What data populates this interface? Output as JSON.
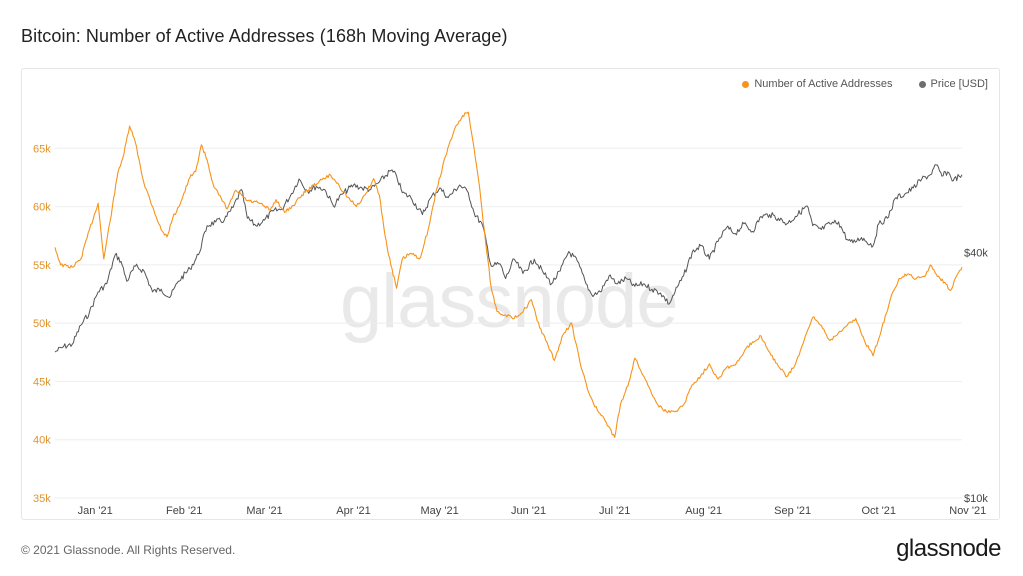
{
  "title": "Bitcoin: Number of Active Addresses (168h Moving Average)",
  "footer": {
    "copyright": "© 2021 Glassnode. All Rights Reserved.",
    "logo": "glassnode"
  },
  "watermark": "glassnode",
  "colors": {
    "addresses": "#f7931a",
    "price": "#555555",
    "grid": "#eeeeee",
    "left_tick": "#e0932b"
  },
  "chart_data": {
    "type": "line",
    "title": "Bitcoin: Number of Active Addresses (168h Moving Average)",
    "x_range": [
      "2020-12-18",
      "2021-10-30"
    ],
    "x_ticks": [
      {
        "label": "Jan '21",
        "date": "2021-01-01"
      },
      {
        "label": "Feb '21",
        "date": "2021-02-01"
      },
      {
        "label": "Mar '21",
        "date": "2021-03-01"
      },
      {
        "label": "Apr '21",
        "date": "2021-04-01"
      },
      {
        "label": "May '21",
        "date": "2021-05-01"
      },
      {
        "label": "Jun '21",
        "date": "2021-06-01"
      },
      {
        "label": "Jul '21",
        "date": "2021-07-01"
      },
      {
        "label": "Aug '21",
        "date": "2021-08-01"
      },
      {
        "label": "Sep '21",
        "date": "2021-09-01"
      },
      {
        "label": "Oct '21",
        "date": "2021-10-01"
      },
      {
        "label": "Nov '21",
        "date": "2021-11-01"
      }
    ],
    "y_left": {
      "range": [
        35000,
        70000
      ],
      "ticks": [
        35000,
        40000,
        45000,
        50000,
        55000,
        60000,
        65000
      ],
      "tick_labels": [
        "35k",
        "40k",
        "45k",
        "50k",
        "55k",
        "60k",
        "65k"
      ]
    },
    "y_right": {
      "scale": "log",
      "range": [
        10000,
        100000
      ],
      "ticks": [
        10000,
        40000
      ],
      "tick_labels": [
        "$10k",
        "$40k"
      ]
    },
    "legend": {
      "position": "top-right"
    },
    "series": [
      {
        "name": "Number of Active Addresses",
        "axis": "left",
        "color": "#f7931a",
        "points": [
          [
            "2020-12-18",
            56500
          ],
          [
            "2020-12-20",
            55000
          ],
          [
            "2020-12-24",
            54800
          ],
          [
            "2020-12-27",
            55500
          ],
          [
            "2020-12-30",
            58000
          ],
          [
            "2021-01-02",
            60300
          ],
          [
            "2021-01-04",
            55500
          ],
          [
            "2021-01-07",
            60000
          ],
          [
            "2021-01-09",
            63000
          ],
          [
            "2021-01-11",
            64500
          ],
          [
            "2021-01-13",
            66900
          ],
          [
            "2021-01-15",
            65500
          ],
          [
            "2021-01-18",
            62000
          ],
          [
            "2021-01-21",
            60000
          ],
          [
            "2021-01-24",
            58000
          ],
          [
            "2021-01-26",
            57400
          ],
          [
            "2021-01-28",
            59000
          ],
          [
            "2021-01-31",
            60500
          ],
          [
            "2021-02-03",
            62500
          ],
          [
            "2021-02-05",
            63000
          ],
          [
            "2021-02-07",
            65300
          ],
          [
            "2021-02-09",
            64000
          ],
          [
            "2021-02-11",
            62000
          ],
          [
            "2021-02-13",
            61000
          ],
          [
            "2021-02-16",
            59800
          ],
          [
            "2021-02-19",
            61400
          ],
          [
            "2021-02-23",
            60500
          ],
          [
            "2021-02-27",
            60300
          ],
          [
            "2021-03-03",
            59700
          ],
          [
            "2021-03-05",
            60600
          ],
          [
            "2021-03-08",
            59500
          ],
          [
            "2021-03-11",
            60100
          ],
          [
            "2021-03-14",
            61000
          ],
          [
            "2021-03-18",
            61800
          ],
          [
            "2021-03-21",
            62300
          ],
          [
            "2021-03-24",
            62700
          ],
          [
            "2021-03-27",
            61800
          ],
          [
            "2021-03-30",
            60800
          ],
          [
            "2021-04-02",
            60000
          ],
          [
            "2021-04-05",
            61000
          ],
          [
            "2021-04-08",
            62400
          ],
          [
            "2021-04-10",
            61000
          ],
          [
            "2021-04-12",
            57500
          ],
          [
            "2021-04-14",
            55000
          ],
          [
            "2021-04-16",
            53000
          ],
          [
            "2021-04-18",
            55500
          ],
          [
            "2021-04-21",
            56000
          ],
          [
            "2021-04-24",
            55500
          ],
          [
            "2021-04-27",
            58000
          ],
          [
            "2021-04-30",
            61500
          ],
          [
            "2021-05-03",
            64300
          ],
          [
            "2021-05-06",
            66500
          ],
          [
            "2021-05-09",
            67800
          ],
          [
            "2021-05-11",
            68100
          ],
          [
            "2021-05-13",
            65000
          ],
          [
            "2021-05-15",
            61500
          ],
          [
            "2021-05-17",
            57000
          ],
          [
            "2021-05-19",
            53000
          ],
          [
            "2021-05-21",
            51000
          ],
          [
            "2021-05-24",
            50700
          ],
          [
            "2021-05-27",
            50400
          ],
          [
            "2021-05-31",
            51300
          ],
          [
            "2021-06-02",
            52000
          ],
          [
            "2021-06-04",
            50200
          ],
          [
            "2021-06-07",
            48500
          ],
          [
            "2021-06-10",
            46800
          ],
          [
            "2021-06-13",
            49000
          ],
          [
            "2021-06-16",
            50000
          ],
          [
            "2021-06-19",
            46500
          ],
          [
            "2021-06-22",
            44000
          ],
          [
            "2021-06-25",
            42500
          ],
          [
            "2021-06-28",
            41500
          ],
          [
            "2021-07-01",
            40200
          ],
          [
            "2021-07-03",
            43000
          ],
          [
            "2021-07-06",
            45000
          ],
          [
            "2021-07-08",
            47000
          ],
          [
            "2021-07-10",
            46000
          ],
          [
            "2021-07-13",
            44500
          ],
          [
            "2021-07-16",
            43000
          ],
          [
            "2021-07-19",
            42400
          ],
          [
            "2021-07-22",
            42400
          ],
          [
            "2021-07-25",
            43000
          ],
          [
            "2021-07-28",
            44700
          ],
          [
            "2021-07-31",
            45500
          ],
          [
            "2021-08-03",
            46500
          ],
          [
            "2021-08-06",
            45200
          ],
          [
            "2021-08-09",
            46200
          ],
          [
            "2021-08-12",
            46400
          ],
          [
            "2021-08-15",
            47500
          ],
          [
            "2021-08-18",
            48400
          ],
          [
            "2021-08-21",
            48900
          ],
          [
            "2021-08-24",
            47500
          ],
          [
            "2021-08-27",
            46300
          ],
          [
            "2021-08-30",
            45400
          ],
          [
            "2021-09-02",
            46500
          ],
          [
            "2021-09-05",
            48500
          ],
          [
            "2021-09-08",
            50500
          ],
          [
            "2021-09-11",
            49800
          ],
          [
            "2021-09-14",
            48500
          ],
          [
            "2021-09-17",
            49200
          ],
          [
            "2021-09-20",
            49800
          ],
          [
            "2021-09-23",
            50400
          ],
          [
            "2021-09-26",
            48500
          ],
          [
            "2021-09-29",
            47200
          ],
          [
            "2021-10-02",
            49500
          ],
          [
            "2021-10-05",
            52000
          ],
          [
            "2021-10-08",
            53800
          ],
          [
            "2021-10-11",
            54200
          ],
          [
            "2021-10-14",
            53800
          ],
          [
            "2021-10-17",
            54000
          ],
          [
            "2021-10-19",
            55000
          ],
          [
            "2021-10-21",
            54200
          ],
          [
            "2021-10-24",
            53500
          ],
          [
            "2021-10-26",
            52800
          ],
          [
            "2021-10-28",
            54000
          ],
          [
            "2021-10-30",
            54800
          ]
        ]
      },
      {
        "name": "Price [USD]",
        "axis": "right",
        "color": "#555555",
        "points": [
          [
            "2020-12-18",
            22800
          ],
          [
            "2020-12-21",
            23500
          ],
          [
            "2020-12-24",
            23800
          ],
          [
            "2020-12-27",
            26500
          ],
          [
            "2020-12-30",
            28500
          ],
          [
            "2021-01-02",
            32000
          ],
          [
            "2021-01-05",
            33500
          ],
          [
            "2021-01-08",
            39500
          ],
          [
            "2021-01-10",
            38000
          ],
          [
            "2021-01-12",
            34000
          ],
          [
            "2021-01-15",
            37000
          ],
          [
            "2021-01-18",
            36000
          ],
          [
            "2021-01-21",
            32000
          ],
          [
            "2021-01-24",
            32500
          ],
          [
            "2021-01-27",
            31000
          ],
          [
            "2021-01-30",
            34000
          ],
          [
            "2021-02-03",
            36500
          ],
          [
            "2021-02-06",
            39500
          ],
          [
            "2021-02-09",
            46500
          ],
          [
            "2021-02-12",
            47500
          ],
          [
            "2021-02-15",
            48000
          ],
          [
            "2021-02-18",
            51500
          ],
          [
            "2021-02-21",
            57000
          ],
          [
            "2021-02-23",
            48500
          ],
          [
            "2021-02-26",
            46500
          ],
          [
            "2021-03-01",
            48000
          ],
          [
            "2021-03-04",
            50500
          ],
          [
            "2021-03-07",
            51000
          ],
          [
            "2021-03-10",
            55000
          ],
          [
            "2021-03-13",
            60500
          ],
          [
            "2021-03-16",
            56500
          ],
          [
            "2021-03-19",
            58000
          ],
          [
            "2021-03-22",
            57000
          ],
          [
            "2021-03-25",
            52000
          ],
          [
            "2021-03-28",
            55500
          ],
          [
            "2021-04-01",
            58500
          ],
          [
            "2021-04-04",
            57500
          ],
          [
            "2021-04-07",
            57000
          ],
          [
            "2021-04-10",
            59500
          ],
          [
            "2021-04-14",
            63500
          ],
          [
            "2021-04-16",
            61500
          ],
          [
            "2021-04-18",
            56000
          ],
          [
            "2021-04-21",
            54500
          ],
          [
            "2021-04-25",
            49500
          ],
          [
            "2021-04-28",
            54500
          ],
          [
            "2021-05-01",
            57500
          ],
          [
            "2021-05-04",
            54500
          ],
          [
            "2021-05-08",
            58500
          ],
          [
            "2021-05-11",
            56000
          ],
          [
            "2021-05-13",
            50000
          ],
          [
            "2021-05-16",
            46500
          ],
          [
            "2021-05-19",
            37000
          ],
          [
            "2021-05-22",
            37500
          ],
          [
            "2021-05-24",
            34500
          ],
          [
            "2021-05-27",
            38500
          ],
          [
            "2021-05-30",
            35500
          ],
          [
            "2021-06-03",
            38500
          ],
          [
            "2021-06-06",
            35800
          ],
          [
            "2021-06-09",
            33500
          ],
          [
            "2021-06-12",
            36000
          ],
          [
            "2021-06-15",
            40200
          ],
          [
            "2021-06-18",
            38000
          ],
          [
            "2021-06-21",
            33500
          ],
          [
            "2021-06-23",
            31500
          ],
          [
            "2021-06-26",
            32000
          ],
          [
            "2021-06-29",
            35000
          ],
          [
            "2021-07-02",
            33500
          ],
          [
            "2021-07-05",
            34500
          ],
          [
            "2021-07-08",
            33000
          ],
          [
            "2021-07-11",
            33500
          ],
          [
            "2021-07-14",
            32500
          ],
          [
            "2021-07-17",
            31800
          ],
          [
            "2021-07-20",
            29900
          ],
          [
            "2021-07-22",
            32000
          ],
          [
            "2021-07-25",
            35000
          ],
          [
            "2021-07-28",
            40000
          ],
          [
            "2021-07-31",
            41500
          ],
          [
            "2021-08-03",
            38500
          ],
          [
            "2021-08-06",
            42500
          ],
          [
            "2021-08-09",
            46000
          ],
          [
            "2021-08-12",
            44500
          ],
          [
            "2021-08-15",
            47000
          ],
          [
            "2021-08-18",
            45000
          ],
          [
            "2021-08-21",
            49000
          ],
          [
            "2021-08-24",
            49500
          ],
          [
            "2021-08-27",
            48500
          ],
          [
            "2021-08-30",
            47000
          ],
          [
            "2021-09-02",
            49000
          ],
          [
            "2021-09-06",
            52000
          ],
          [
            "2021-09-08",
            46500
          ],
          [
            "2021-09-11",
            45500
          ],
          [
            "2021-09-14",
            47000
          ],
          [
            "2021-09-17",
            47500
          ],
          [
            "2021-09-20",
            43000
          ],
          [
            "2021-09-22",
            42200
          ],
          [
            "2021-09-25",
            43500
          ],
          [
            "2021-09-29",
            41500
          ],
          [
            "2021-10-01",
            47000
          ],
          [
            "2021-10-04",
            48500
          ],
          [
            "2021-10-07",
            54500
          ],
          [
            "2021-10-10",
            55500
          ],
          [
            "2021-10-13",
            57500
          ],
          [
            "2021-10-16",
            60500
          ],
          [
            "2021-10-19",
            62000
          ],
          [
            "2021-10-21",
            65500
          ],
          [
            "2021-10-23",
            61500
          ],
          [
            "2021-10-25",
            63000
          ],
          [
            "2021-10-27",
            60000
          ],
          [
            "2021-10-29",
            61500
          ],
          [
            "2021-10-30",
            62000
          ]
        ]
      }
    ]
  }
}
